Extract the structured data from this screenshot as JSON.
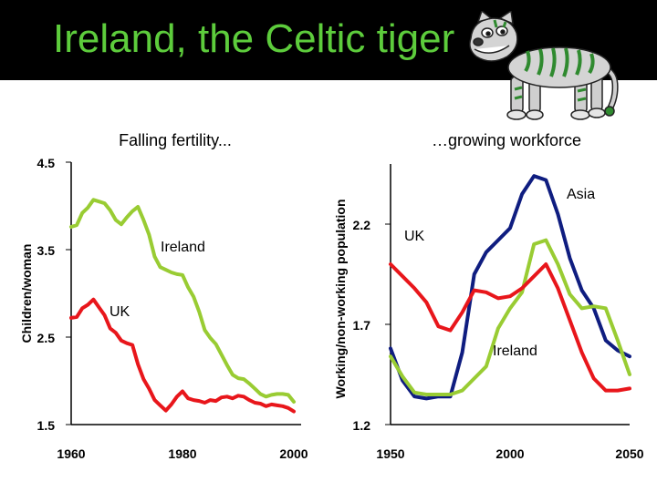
{
  "slide": {
    "title": "Ireland, the Celtic tiger",
    "title_color": "#5dcc3c",
    "header_bg": "#000000",
    "illustration": "cartoon-tiger"
  },
  "chart_data": [
    {
      "type": "line",
      "title": "Falling fertility...",
      "xlabel": "",
      "ylabel": "Children/woman",
      "xlim": [
        1960,
        2000
      ],
      "ylim": [
        1.5,
        4.5
      ],
      "x_ticks": [
        "1960",
        "1980",
        "2000"
      ],
      "y_ticks": [
        "4.5",
        "3.5",
        "2.5",
        "1.5"
      ],
      "series": [
        {
          "name": "Ireland",
          "color": "#99cc33",
          "x": [
            1960,
            1961,
            1962,
            1963,
            1964,
            1965,
            1966,
            1967,
            1968,
            1969,
            1970,
            1971,
            1972,
            1973,
            1974,
            1975,
            1976,
            1977,
            1978,
            1979,
            1980,
            1981,
            1982,
            1983,
            1984,
            1985,
            1986,
            1987,
            1988,
            1989,
            1990,
            1991,
            1992,
            1993,
            1994,
            1995,
            1996,
            1997,
            1998,
            1999,
            2000
          ],
          "values": [
            3.76,
            3.78,
            3.92,
            3.98,
            4.07,
            4.05,
            4.03,
            3.95,
            3.84,
            3.79,
            3.87,
            3.94,
            3.99,
            3.84,
            3.67,
            3.42,
            3.3,
            3.27,
            3.24,
            3.22,
            3.21,
            3.07,
            2.96,
            2.79,
            2.58,
            2.49,
            2.42,
            2.3,
            2.18,
            2.07,
            2.03,
            2.02,
            1.97,
            1.91,
            1.85,
            1.82,
            1.84,
            1.85,
            1.85,
            1.84,
            1.76
          ]
        },
        {
          "name": "UK",
          "color": "#e8161b",
          "x": [
            1960,
            1961,
            1962,
            1963,
            1964,
            1965,
            1966,
            1967,
            1968,
            1969,
            1970,
            1971,
            1972,
            1973,
            1974,
            1975,
            1976,
            1977,
            1978,
            1979,
            1980,
            1981,
            1982,
            1983,
            1984,
            1985,
            1986,
            1987,
            1988,
            1989,
            1990,
            1991,
            1992,
            1993,
            1994,
            1995,
            1996,
            1997,
            1998,
            1999,
            2000
          ],
          "values": [
            2.72,
            2.73,
            2.83,
            2.87,
            2.93,
            2.84,
            2.75,
            2.6,
            2.55,
            2.46,
            2.43,
            2.41,
            2.19,
            2.02,
            1.91,
            1.78,
            1.72,
            1.66,
            1.73,
            1.82,
            1.88,
            1.8,
            1.78,
            1.77,
            1.75,
            1.78,
            1.77,
            1.81,
            1.82,
            1.8,
            1.83,
            1.82,
            1.78,
            1.75,
            1.74,
            1.71,
            1.73,
            1.72,
            1.71,
            1.69,
            1.65
          ]
        }
      ],
      "annotations": [
        "Ireland",
        "UK"
      ]
    },
    {
      "type": "line",
      "title": "…growing workforce",
      "xlabel": "",
      "ylabel": "Working/non-working population",
      "xlim": [
        1950,
        2050
      ],
      "ylim": [
        1.2,
        2.5
      ],
      "x_ticks": [
        "1950",
        "2000",
        "2050"
      ],
      "y_ticks": [
        "2.2",
        "1.7",
        "1.2"
      ],
      "series": [
        {
          "name": "Asia",
          "color": "#0f1d80",
          "x": [
            1950,
            1955,
            1960,
            1965,
            1970,
            1975,
            1980,
            1985,
            1990,
            1995,
            2000,
            2005,
            2010,
            2015,
            2020,
            2025,
            2030,
            2035,
            2040,
            2045,
            2050
          ],
          "values": [
            1.58,
            1.42,
            1.34,
            1.33,
            1.34,
            1.34,
            1.56,
            1.95,
            2.06,
            2.12,
            2.18,
            2.35,
            2.44,
            2.42,
            2.25,
            2.03,
            1.87,
            1.78,
            1.62,
            1.57,
            1.54
          ]
        },
        {
          "name": "Ireland",
          "color": "#99cc33",
          "x": [
            1950,
            1955,
            1960,
            1965,
            1970,
            1975,
            1980,
            1985,
            1990,
            1995,
            2000,
            2005,
            2010,
            2015,
            2020,
            2025,
            2030,
            2035,
            2040,
            2045,
            2050
          ],
          "values": [
            1.54,
            1.44,
            1.36,
            1.35,
            1.35,
            1.35,
            1.37,
            1.43,
            1.49,
            1.68,
            1.78,
            1.86,
            2.1,
            2.12,
            2.0,
            1.85,
            1.78,
            1.79,
            1.78,
            1.62,
            1.45
          ]
        },
        {
          "name": "UK",
          "color": "#e8161b",
          "x": [
            1950,
            1955,
            1960,
            1965,
            1970,
            1975,
            1980,
            1985,
            1990,
            1995,
            2000,
            2005,
            2010,
            2015,
            2020,
            2025,
            2030,
            2035,
            2040,
            2045,
            2050
          ],
          "values": [
            2.0,
            1.94,
            1.88,
            1.81,
            1.69,
            1.67,
            1.76,
            1.87,
            1.86,
            1.83,
            1.84,
            1.88,
            1.94,
            2.0,
            1.88,
            1.72,
            1.56,
            1.43,
            1.37,
            1.37,
            1.38
          ]
        }
      ],
      "annotations": [
        "Asia",
        "UK",
        "Ireland"
      ]
    }
  ]
}
